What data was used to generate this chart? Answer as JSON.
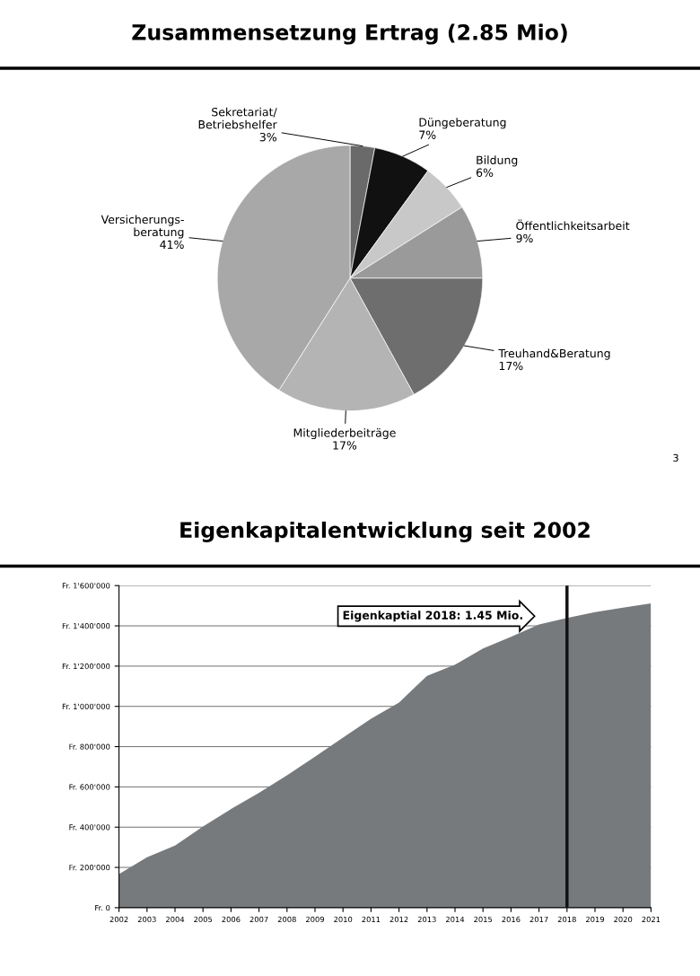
{
  "chart_data": [
    {
      "type": "pie",
      "title": "Zusammensetzung Ertrag (2.85 Mio)",
      "categories": [
        "Sekretariat/\nBetriebshelfer",
        "Düngeberatung",
        "Bildung",
        "Öffentlichkeitsarbeit",
        "Treuhand&Beratung",
        "Mitgliederbeiträge",
        "Versicherungs-\nberatung"
      ],
      "values": [
        3,
        7,
        6,
        9,
        17,
        17,
        41
      ],
      "colors": [
        "#6a6a6a",
        "#111111",
        "#c8c8c8",
        "#9a9a9a",
        "#6e6e6e",
        "#b4b4b4",
        "#a8a8a8"
      ],
      "value_labels": [
        "3%",
        "7%",
        "6%",
        "9%",
        "17%",
        "17%",
        "41%"
      ],
      "annotations": [
        "3"
      ]
    },
    {
      "type": "area",
      "title": "Eigenkapitalentwicklung seit 2002",
      "x": [
        2002,
        2003,
        2004,
        2005,
        2006,
        2007,
        2008,
        2009,
        2010,
        2011,
        2012,
        2013,
        2014,
        2015,
        2016,
        2017,
        2018,
        2019,
        2020,
        2021
      ],
      "series": [
        {
          "color": "#777a7c",
          "values": [
            167000,
            251000,
            309000,
            403000,
            490000,
            570000,
            657000,
            750000,
            845000,
            939000,
            1019000,
            1152000,
            1207000,
            1287000,
            1345000,
            1407000,
            1439000,
            1468000,
            1490000,
            1512000
          ]
        }
      ],
      "xlim": [
        2002,
        2021
      ],
      "xticks": [
        2002,
        2003,
        2004,
        2005,
        2006,
        2007,
        2008,
        2009,
        2010,
        2011,
        2012,
        2013,
        2014,
        2015,
        2016,
        2017,
        2018,
        2019,
        2020,
        2021
      ],
      "ylim": [
        0,
        1600000
      ],
      "yticks": [
        {
          "value": 0,
          "label": "Fr. 0"
        },
        {
          "value": 200000,
          "label": "Fr. 200'000"
        },
        {
          "value": 400000,
          "label": "Fr. 400'000"
        },
        {
          "value": 600000,
          "label": "Fr. 600'000"
        },
        {
          "value": 800000,
          "label": "Fr. 800'000"
        },
        {
          "value": 1000000,
          "label": "Fr. 1'000'000"
        },
        {
          "value": 1200000,
          "label": "Fr. 1'200'000"
        },
        {
          "value": 1400000,
          "label": "Fr. 1'400'000"
        },
        {
          "value": 1600000,
          "label": "Fr. 1'600'000"
        }
      ],
      "grid": "y",
      "ref_lines": [
        {
          "axis": "x",
          "value": 2018,
          "color": "#111111"
        }
      ],
      "annotations": [
        "Eigenkaptial 2018: 1.45 Mio."
      ]
    }
  ]
}
